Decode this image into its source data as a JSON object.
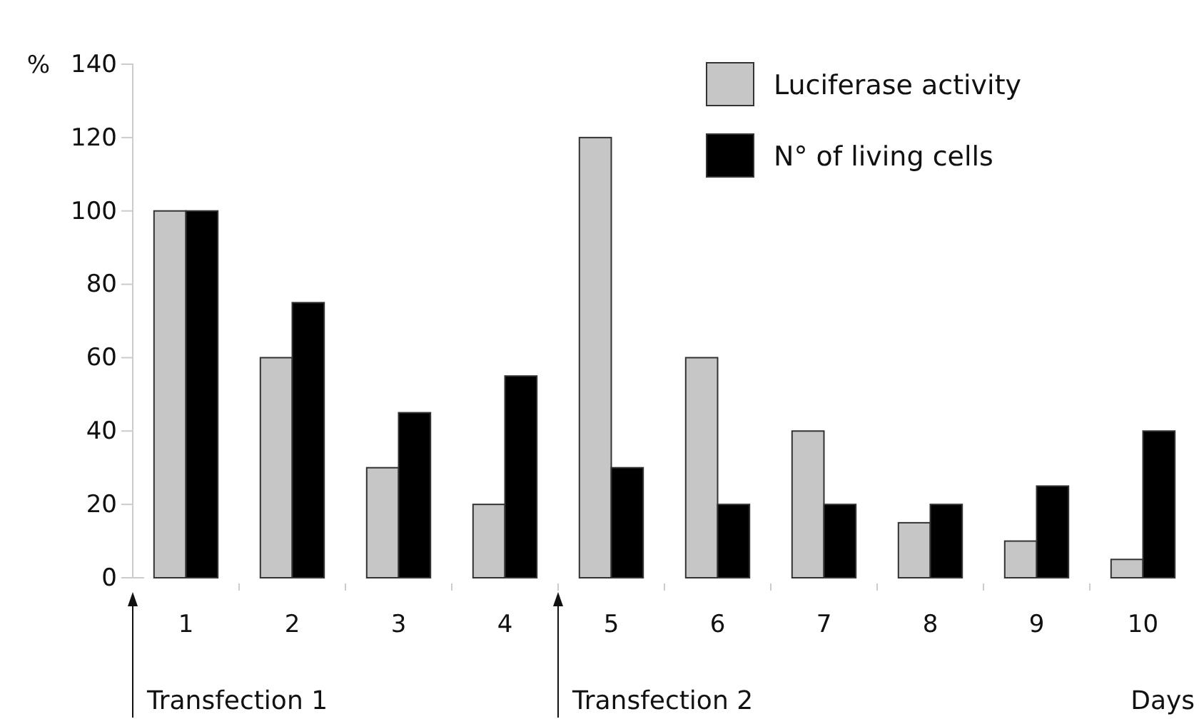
{
  "chart_data": {
    "type": "bar",
    "ylabel": "%",
    "xlabel": "Days",
    "categories": [
      "1",
      "2",
      "3",
      "4",
      "5",
      "6",
      "7",
      "8",
      "9",
      "10"
    ],
    "series": [
      {
        "name": "Luciferase activity",
        "color": "#c6c6c6",
        "values": [
          100,
          60,
          30,
          20,
          120,
          60,
          40,
          15,
          10,
          5
        ]
      },
      {
        "name": "N° of living cells",
        "color": "#000000",
        "values": [
          100,
          75,
          45,
          55,
          30,
          20,
          20,
          20,
          25,
          40
        ]
      }
    ],
    "ylim": [
      0,
      140
    ],
    "yticks": [
      0,
      20,
      40,
      60,
      80,
      100,
      120,
      140
    ],
    "annotations": [
      "Transfection 1",
      "Transfection 2"
    ],
    "legend": "top right",
    "grid": false
  }
}
